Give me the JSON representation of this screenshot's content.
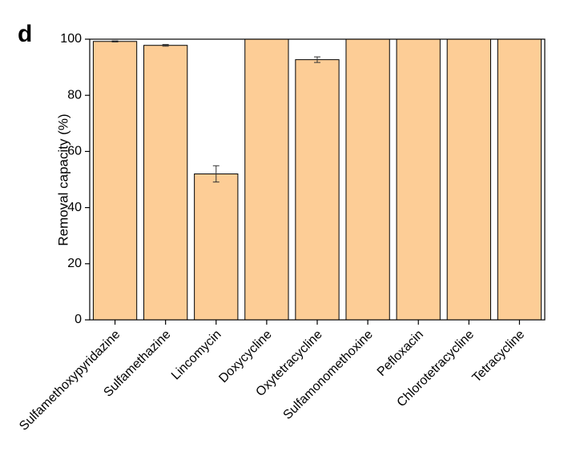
{
  "panel_label": "d",
  "chart_data": {
    "type": "bar",
    "y_label": "Removal capacity (%)",
    "categories": [
      "Sulfamethoxypyridazine",
      "Sulfamethazine",
      "Lincomycin",
      "Doxycycline",
      "Oxytetracycline",
      "Sulfamonomethoxine",
      "Pefloxacin",
      "Chlorotetracycline",
      "Tetracycline"
    ],
    "values": [
      99.2,
      97.8,
      52,
      100,
      92.7,
      100,
      100,
      100,
      100
    ],
    "errors": [
      0.2,
      0.3,
      2.9,
      null,
      1.0,
      null,
      null,
      null,
      null
    ],
    "color": "#fdcd96",
    "ylim": [
      0,
      100
    ],
    "yticks": [
      0,
      20,
      40,
      60,
      80,
      100
    ],
    "grid": false
  }
}
